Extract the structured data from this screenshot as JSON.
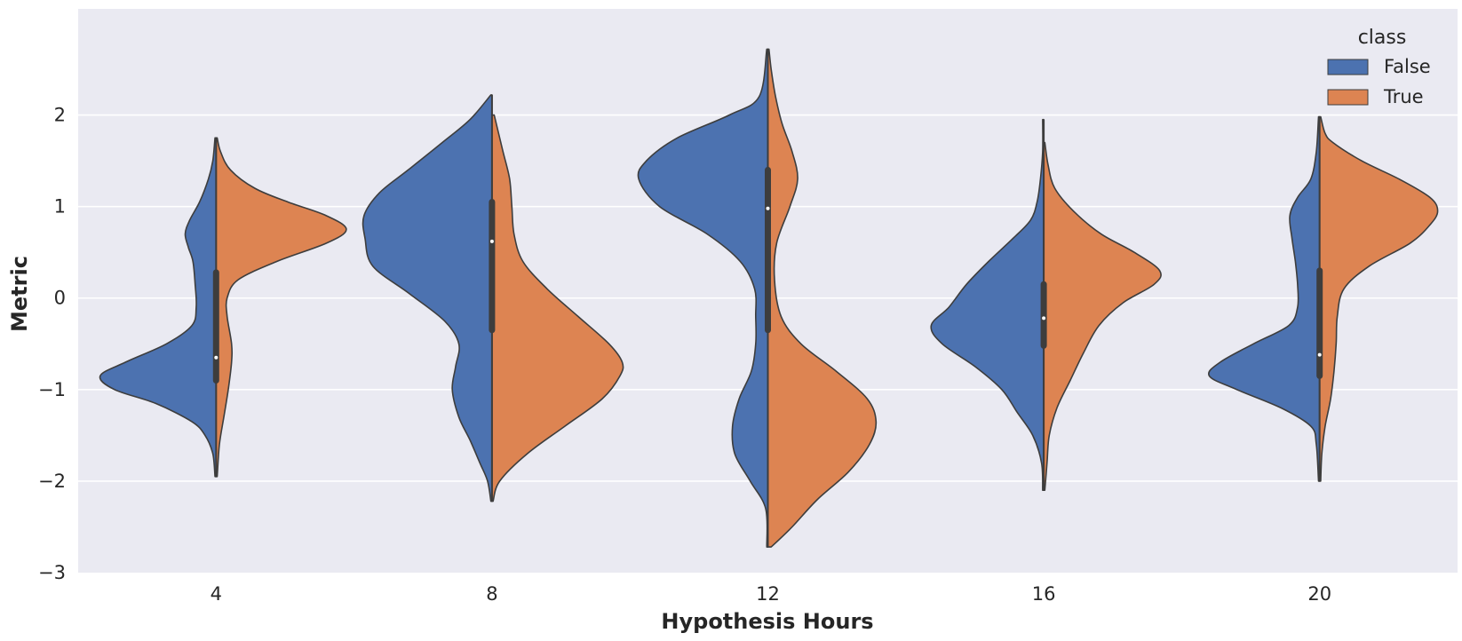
{
  "chart_data": {
    "type": "violin",
    "split": true,
    "xlabel": "Hypothesis Hours",
    "ylabel": "Metric",
    "ylim": [
      -3,
      3
    ],
    "yticks": [
      -3,
      -2,
      -1,
      0,
      1,
      2
    ],
    "ytick_labels": [
      "−3",
      "−2",
      "−1",
      "0",
      "1",
      "2"
    ],
    "categories": [
      "4",
      "8",
      "12",
      "16",
      "20"
    ],
    "grid": true,
    "background_color": "#eaeaf2",
    "legend": {
      "title": "class",
      "position": "top-right",
      "entries": [
        {
          "label": "False",
          "color": "#4c72b0"
        },
        {
          "label": "True",
          "color": "#dd8452"
        }
      ]
    },
    "series": [
      {
        "name": "False",
        "color": "#4c72b0",
        "side": "left"
      },
      {
        "name": "True",
        "color": "#dd8452",
        "side": "right"
      }
    ],
    "violins": [
      {
        "category": "4",
        "box": {
          "q1": -0.9,
          "median": -0.65,
          "q3": 0.28,
          "whisker_low": -1.95,
          "whisker_high": 1.75
        },
        "left": [
          [
            -1.95,
            0.01
          ],
          [
            -1.7,
            0.03
          ],
          [
            -1.5,
            0.1
          ],
          [
            -1.35,
            0.22
          ],
          [
            -1.15,
            0.55
          ],
          [
            -1,
            0.92
          ],
          [
            -0.85,
            1.05
          ],
          [
            -0.7,
            0.82
          ],
          [
            -0.5,
            0.45
          ],
          [
            -0.3,
            0.22
          ],
          [
            -0.1,
            0.18
          ],
          [
            0.15,
            0.19
          ],
          [
            0.4,
            0.21
          ],
          [
            0.55,
            0.25
          ],
          [
            0.7,
            0.28
          ],
          [
            0.85,
            0.24
          ],
          [
            1.05,
            0.15
          ],
          [
            1.3,
            0.07
          ],
          [
            1.5,
            0.03
          ],
          [
            1.75,
            0.01
          ]
        ],
        "right": [
          [
            -1.95,
            0.01
          ],
          [
            -1.6,
            0.03
          ],
          [
            -1.3,
            0.07
          ],
          [
            -1,
            0.11
          ],
          [
            -0.7,
            0.14
          ],
          [
            -0.5,
            0.14
          ],
          [
            -0.2,
            0.1
          ],
          [
            0,
            0.1
          ],
          [
            0.2,
            0.2
          ],
          [
            0.4,
            0.55
          ],
          [
            0.6,
            1.0
          ],
          [
            0.75,
            1.18
          ],
          [
            0.9,
            1.0
          ],
          [
            1.05,
            0.65
          ],
          [
            1.2,
            0.35
          ],
          [
            1.4,
            0.13
          ],
          [
            1.6,
            0.04
          ],
          [
            1.75,
            0.01
          ]
        ]
      },
      {
        "category": "8",
        "box": {
          "q1": -0.35,
          "median": 0.62,
          "q3": 1.05,
          "whisker_low": -2.22,
          "whisker_high": 2.22
        },
        "left": [
          [
            -2.22,
            0.01
          ],
          [
            -2,
            0.04
          ],
          [
            -1.8,
            0.11
          ],
          [
            -1.55,
            0.2
          ],
          [
            -1.3,
            0.3
          ],
          [
            -1.0,
            0.36
          ],
          [
            -0.75,
            0.33
          ],
          [
            -0.5,
            0.3
          ],
          [
            -0.25,
            0.43
          ],
          [
            0.05,
            0.75
          ],
          [
            0.35,
            1.08
          ],
          [
            0.65,
            1.15
          ],
          [
            0.9,
            1.16
          ],
          [
            1.15,
            1.02
          ],
          [
            1.4,
            0.76
          ],
          [
            1.7,
            0.45
          ],
          [
            1.95,
            0.2
          ],
          [
            2.22,
            0.01
          ]
        ],
        "right": [
          [
            -2.22,
            0.01
          ],
          [
            -2.0,
            0.07
          ],
          [
            -1.7,
            0.32
          ],
          [
            -1.4,
            0.66
          ],
          [
            -1.1,
            1.0
          ],
          [
            -0.85,
            1.16
          ],
          [
            -0.7,
            1.18
          ],
          [
            -0.5,
            1.06
          ],
          [
            -0.2,
            0.78
          ],
          [
            0.1,
            0.5
          ],
          [
            0.4,
            0.28
          ],
          [
            0.7,
            0.2
          ],
          [
            1.0,
            0.18
          ],
          [
            1.3,
            0.16
          ],
          [
            1.6,
            0.1
          ],
          [
            1.85,
            0.05
          ],
          [
            2.0,
            0.02
          ]
        ]
      },
      {
        "category": "12",
        "box": {
          "q1": -0.35,
          "median": 0.98,
          "q3": 1.4,
          "whisker_low": -2.72,
          "whisker_high": 2.72
        },
        "left": [
          [
            -2.72,
            0.01
          ],
          [
            -2.3,
            0.02
          ],
          [
            -2.0,
            0.16
          ],
          [
            -1.7,
            0.3
          ],
          [
            -1.4,
            0.32
          ],
          [
            -1.1,
            0.26
          ],
          [
            -0.8,
            0.15
          ],
          [
            -0.5,
            0.11
          ],
          [
            -0.2,
            0.11
          ],
          [
            0.1,
            0.12
          ],
          [
            0.4,
            0.25
          ],
          [
            0.7,
            0.55
          ],
          [
            1.0,
            0.98
          ],
          [
            1.3,
            1.17
          ],
          [
            1.5,
            1.1
          ],
          [
            1.75,
            0.82
          ],
          [
            2.0,
            0.35
          ],
          [
            2.2,
            0.08
          ],
          [
            2.72,
            0.01
          ]
        ],
        "right": [
          [
            -2.72,
            0.03
          ],
          [
            -2.5,
            0.22
          ],
          [
            -2.2,
            0.45
          ],
          [
            -1.9,
            0.73
          ],
          [
            -1.6,
            0.92
          ],
          [
            -1.35,
            0.98
          ],
          [
            -1.1,
            0.9
          ],
          [
            -0.8,
            0.62
          ],
          [
            -0.5,
            0.3
          ],
          [
            -0.2,
            0.12
          ],
          [
            0.2,
            0.06
          ],
          [
            0.6,
            0.08
          ],
          [
            1.0,
            0.2
          ],
          [
            1.3,
            0.27
          ],
          [
            1.6,
            0.22
          ],
          [
            1.9,
            0.13
          ],
          [
            2.2,
            0.07
          ],
          [
            2.5,
            0.03
          ],
          [
            2.72,
            0.01
          ]
        ]
      },
      {
        "category": "16",
        "box": {
          "q1": -0.52,
          "median": -0.22,
          "q3": 0.15,
          "whisker_low": -2.1,
          "whisker_high": 1.95
        },
        "left": [
          [
            -2.1,
            0.01
          ],
          [
            -1.8,
            0.02
          ],
          [
            -1.5,
            0.1
          ],
          [
            -1.25,
            0.24
          ],
          [
            -1.0,
            0.38
          ],
          [
            -0.75,
            0.62
          ],
          [
            -0.5,
            0.92
          ],
          [
            -0.3,
            1.02
          ],
          [
            -0.1,
            0.86
          ],
          [
            0.15,
            0.7
          ],
          [
            0.4,
            0.5
          ],
          [
            0.65,
            0.28
          ],
          [
            0.85,
            0.12
          ],
          [
            1.05,
            0.06
          ],
          [
            1.3,
            0.03
          ],
          [
            1.6,
            0.01
          ],
          [
            1.95,
            0.01
          ]
        ],
        "right": [
          [
            -2.1,
            0.01
          ],
          [
            -1.8,
            0.03
          ],
          [
            -1.5,
            0.05
          ],
          [
            -1.2,
            0.12
          ],
          [
            -0.9,
            0.24
          ],
          [
            -0.6,
            0.36
          ],
          [
            -0.3,
            0.5
          ],
          [
            -0.05,
            0.72
          ],
          [
            0.15,
            1.0
          ],
          [
            0.3,
            1.05
          ],
          [
            0.5,
            0.82
          ],
          [
            0.7,
            0.52
          ],
          [
            0.95,
            0.27
          ],
          [
            1.2,
            0.1
          ],
          [
            1.45,
            0.04
          ],
          [
            1.7,
            0.01
          ]
        ]
      },
      {
        "category": "20",
        "box": {
          "q1": -0.85,
          "median": -0.62,
          "q3": 0.3,
          "whisker_low": -2.0,
          "whisker_high": 1.98
        },
        "left": [
          [
            -2.0,
            0.01
          ],
          [
            -1.6,
            0.03
          ],
          [
            -1.4,
            0.08
          ],
          [
            -1.2,
            0.35
          ],
          [
            -1.0,
            0.75
          ],
          [
            -0.85,
            1.0
          ],
          [
            -0.7,
            0.9
          ],
          [
            -0.5,
            0.6
          ],
          [
            -0.3,
            0.28
          ],
          [
            -0.1,
            0.2
          ],
          [
            0.15,
            0.2
          ],
          [
            0.4,
            0.22
          ],
          [
            0.65,
            0.25
          ],
          [
            0.9,
            0.27
          ],
          [
            1.1,
            0.2
          ],
          [
            1.3,
            0.08
          ],
          [
            1.6,
            0.03
          ],
          [
            1.98,
            0.01
          ]
        ],
        "right": [
          [
            -2.0,
            0.01
          ],
          [
            -1.7,
            0.02
          ],
          [
            -1.4,
            0.05
          ],
          [
            -1.1,
            0.1
          ],
          [
            -0.8,
            0.13
          ],
          [
            -0.5,
            0.15
          ],
          [
            -0.2,
            0.16
          ],
          [
            0.1,
            0.22
          ],
          [
            0.35,
            0.45
          ],
          [
            0.6,
            0.82
          ],
          [
            0.8,
            1.0
          ],
          [
            0.95,
            1.07
          ],
          [
            1.1,
            1.0
          ],
          [
            1.3,
            0.72
          ],
          [
            1.5,
            0.38
          ],
          [
            1.7,
            0.12
          ],
          [
            1.8,
            0.05
          ],
          [
            1.98,
            0.01
          ]
        ]
      }
    ]
  }
}
